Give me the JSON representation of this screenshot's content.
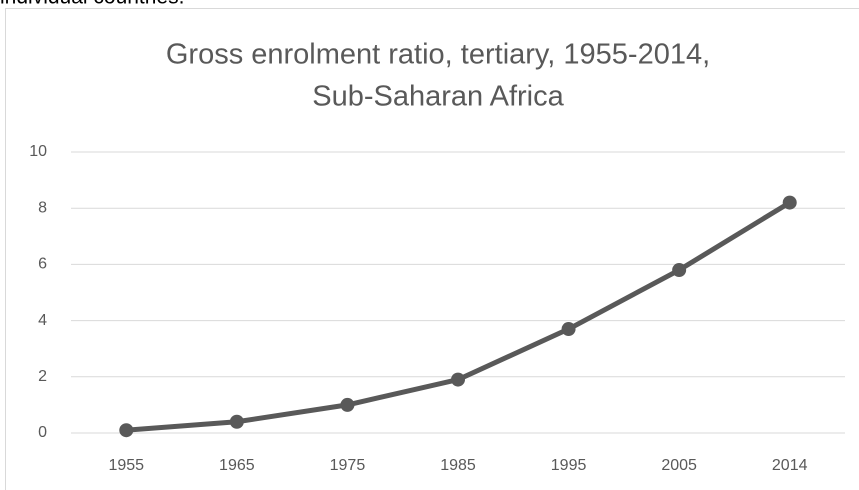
{
  "page_text": "individual countries.",
  "chart_data": {
    "type": "line",
    "title": [
      "Gross enrolment ratio, tertiary, 1955-2014,",
      "Sub-Saharan Africa"
    ],
    "categories": [
      "1955",
      "1965",
      "1975",
      "1985",
      "1995",
      "2005",
      "2014"
    ],
    "series": [
      {
        "name": "Sub-Saharan Africa",
        "color": "#595959",
        "values": [
          0.1,
          0.4,
          1.0,
          1.9,
          3.7,
          5.8,
          8.2
        ]
      }
    ],
    "ylim": [
      0,
      10
    ],
    "yticks": [
      0,
      2,
      4,
      6,
      8,
      10
    ],
    "grid": true,
    "legend": false
  }
}
